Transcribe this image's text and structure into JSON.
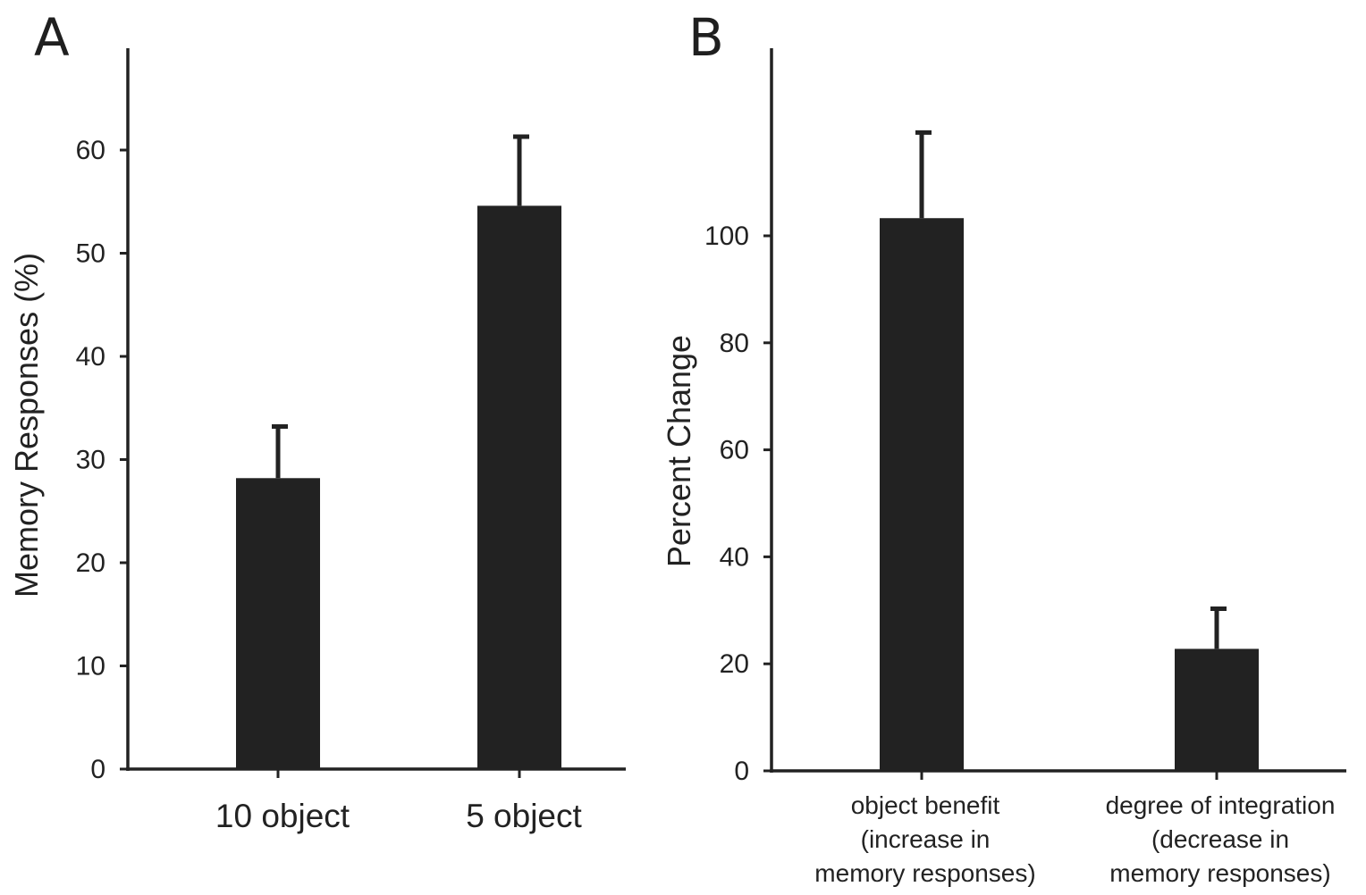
{
  "colors": {
    "bar": "#222222",
    "axis": "#222222",
    "text": "#222222",
    "background": "#ffffff"
  },
  "chart_data": [
    {
      "panel": "A",
      "type": "bar",
      "ylabel": "Memory Responses (%)",
      "xlabel": "",
      "ylim": [
        0,
        70
      ],
      "yticks": [
        0,
        10,
        20,
        30,
        40,
        50,
        60
      ],
      "categories": [
        "10 object",
        "5 object"
      ],
      "values": [
        28.2,
        54.6
      ],
      "error_upper": [
        33.2,
        61.3
      ],
      "grid": false
    },
    {
      "panel": "B",
      "type": "bar",
      "ylabel": "Percent Change",
      "xlabel": "",
      "ylim": [
        0,
        135
      ],
      "yticks": [
        0,
        20,
        40,
        60,
        80,
        100
      ],
      "categories": [
        [
          "object benefit",
          "(increase in",
          "memory responses)"
        ],
        [
          "degree of integration",
          "(decrease in",
          "memory responses)"
        ]
      ],
      "values": [
        103.3,
        22.8
      ],
      "error_upper": [
        119.3,
        30.3
      ],
      "grid": false
    }
  ]
}
